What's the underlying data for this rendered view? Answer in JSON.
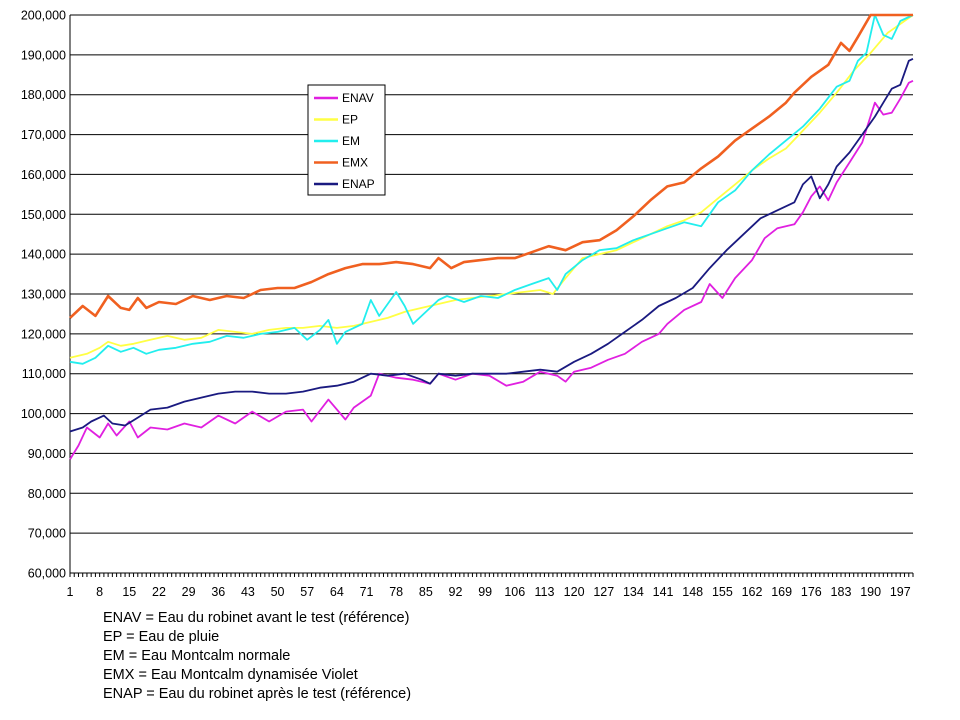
{
  "chart_data": {
    "type": "line",
    "title": "",
    "xlabel": "",
    "ylabel": "",
    "ylim": [
      60000,
      200000
    ],
    "yticks": [
      "60,000",
      "70,000",
      "80,000",
      "90,000",
      "100,000",
      "110,000",
      "120,000",
      "130,000",
      "140,000",
      "150,000",
      "160,000",
      "170,000",
      "180,000",
      "190,000",
      "200,000"
    ],
    "xlim": [
      1,
      200
    ],
    "xticks": [
      "1",
      "8",
      "15",
      "22",
      "29",
      "36",
      "43",
      "50",
      "57",
      "64",
      "71",
      "78",
      "85",
      "92",
      "99",
      "106",
      "113",
      "120",
      "127",
      "134",
      "141",
      "148",
      "155",
      "162",
      "169",
      "176",
      "183",
      "190",
      "197"
    ],
    "grid": "horizontal",
    "legend_position": "inside-top-left",
    "series": [
      {
        "name": "ENAV",
        "color": "#e020e0",
        "points": [
          [
            1,
            88500
          ],
          [
            3,
            92000
          ],
          [
            5,
            96500
          ],
          [
            8,
            94000
          ],
          [
            10,
            97500
          ],
          [
            12,
            94500
          ],
          [
            15,
            98000
          ],
          [
            17,
            94000
          ],
          [
            20,
            96500
          ],
          [
            24,
            96000
          ],
          [
            28,
            97500
          ],
          [
            32,
            96500
          ],
          [
            36,
            99500
          ],
          [
            40,
            97500
          ],
          [
            44,
            100500
          ],
          [
            48,
            98000
          ],
          [
            52,
            100500
          ],
          [
            56,
            101000
          ],
          [
            58,
            98000
          ],
          [
            62,
            103500
          ],
          [
            66,
            98500
          ],
          [
            68,
            101500
          ],
          [
            72,
            104500
          ],
          [
            74,
            110000
          ],
          [
            78,
            109000
          ],
          [
            82,
            108500
          ],
          [
            86,
            107500
          ],
          [
            88,
            110000
          ],
          [
            92,
            108500
          ],
          [
            96,
            110000
          ],
          [
            100,
            109500
          ],
          [
            104,
            107000
          ],
          [
            108,
            108000
          ],
          [
            112,
            110500
          ],
          [
            116,
            109500
          ],
          [
            118,
            108000
          ],
          [
            120,
            110500
          ],
          [
            124,
            111500
          ],
          [
            128,
            113500
          ],
          [
            132,
            115000
          ],
          [
            136,
            118000
          ],
          [
            140,
            120000
          ],
          [
            142,
            122500
          ],
          [
            146,
            126000
          ],
          [
            150,
            128000
          ],
          [
            152,
            132500
          ],
          [
            155,
            129000
          ],
          [
            158,
            134000
          ],
          [
            162,
            138500
          ],
          [
            165,
            144000
          ],
          [
            168,
            146500
          ],
          [
            172,
            147500
          ],
          [
            174,
            150500
          ],
          [
            176,
            154500
          ],
          [
            178,
            157000
          ],
          [
            180,
            153500
          ],
          [
            182,
            158000
          ],
          [
            185,
            163000
          ],
          [
            188,
            168000
          ],
          [
            191,
            178000
          ],
          [
            193,
            175000
          ],
          [
            195,
            175500
          ],
          [
            197,
            179000
          ],
          [
            199,
            183000
          ],
          [
            200,
            183500
          ]
        ]
      },
      {
        "name": "EP",
        "color": "#ffff44",
        "points": [
          [
            1,
            114000
          ],
          [
            5,
            115000
          ],
          [
            8,
            116500
          ],
          [
            10,
            118000
          ],
          [
            13,
            117000
          ],
          [
            16,
            117500
          ],
          [
            20,
            118500
          ],
          [
            24,
            119500
          ],
          [
            28,
            118500
          ],
          [
            32,
            119000
          ],
          [
            36,
            121000
          ],
          [
            40,
            120500
          ],
          [
            44,
            120000
          ],
          [
            48,
            121000
          ],
          [
            52,
            121500
          ],
          [
            56,
            121500
          ],
          [
            60,
            122000
          ],
          [
            64,
            121500
          ],
          [
            68,
            122000
          ],
          [
            72,
            123000
          ],
          [
            76,
            124000
          ],
          [
            80,
            125500
          ],
          [
            84,
            126500
          ],
          [
            88,
            127500
          ],
          [
            92,
            128500
          ],
          [
            96,
            129000
          ],
          [
            100,
            129500
          ],
          [
            104,
            130000
          ],
          [
            108,
            130500
          ],
          [
            112,
            131000
          ],
          [
            115,
            130000
          ],
          [
            118,
            134000
          ],
          [
            122,
            139000
          ],
          [
            126,
            140000
          ],
          [
            130,
            141000
          ],
          [
            134,
            143000
          ],
          [
            138,
            145000
          ],
          [
            142,
            147000
          ],
          [
            146,
            148500
          ],
          [
            150,
            150500
          ],
          [
            154,
            154000
          ],
          [
            158,
            157500
          ],
          [
            162,
            161000
          ],
          [
            166,
            164000
          ],
          [
            170,
            166500
          ],
          [
            174,
            171000
          ],
          [
            178,
            175500
          ],
          [
            182,
            180500
          ],
          [
            186,
            186000
          ],
          [
            190,
            190500
          ],
          [
            194,
            195500
          ],
          [
            198,
            198500
          ],
          [
            200,
            200000
          ]
        ]
      },
      {
        "name": "EM",
        "color": "#22eeee",
        "points": [
          [
            1,
            113000
          ],
          [
            4,
            112500
          ],
          [
            7,
            114000
          ],
          [
            10,
            117000
          ],
          [
            13,
            115500
          ],
          [
            16,
            116500
          ],
          [
            19,
            115000
          ],
          [
            22,
            116000
          ],
          [
            26,
            116500
          ],
          [
            30,
            117500
          ],
          [
            34,
            118000
          ],
          [
            38,
            119500
          ],
          [
            42,
            119000
          ],
          [
            46,
            120000
          ],
          [
            50,
            120500
          ],
          [
            54,
            121500
          ],
          [
            57,
            118500
          ],
          [
            60,
            121000
          ],
          [
            62,
            123500
          ],
          [
            64,
            117500
          ],
          [
            66,
            120500
          ],
          [
            70,
            122500
          ],
          [
            72,
            128500
          ],
          [
            74,
            124500
          ],
          [
            78,
            130500
          ],
          [
            80,
            127000
          ],
          [
            82,
            122500
          ],
          [
            84,
            124500
          ],
          [
            88,
            128500
          ],
          [
            90,
            129500
          ],
          [
            94,
            128000
          ],
          [
            98,
            129500
          ],
          [
            102,
            129000
          ],
          [
            106,
            131000
          ],
          [
            110,
            132500
          ],
          [
            114,
            134000
          ],
          [
            116,
            131000
          ],
          [
            118,
            135000
          ],
          [
            122,
            138500
          ],
          [
            126,
            141000
          ],
          [
            130,
            141500
          ],
          [
            134,
            143500
          ],
          [
            138,
            145000
          ],
          [
            142,
            146500
          ],
          [
            146,
            148000
          ],
          [
            150,
            147000
          ],
          [
            154,
            153000
          ],
          [
            158,
            156000
          ],
          [
            162,
            161000
          ],
          [
            166,
            165000
          ],
          [
            170,
            168500
          ],
          [
            174,
            172000
          ],
          [
            178,
            176500
          ],
          [
            182,
            182000
          ],
          [
            185,
            183500
          ],
          [
            187,
            188500
          ],
          [
            189,
            190500
          ],
          [
            191,
            200000
          ],
          [
            193,
            195000
          ],
          [
            195,
            194000
          ],
          [
            197,
            198500
          ],
          [
            199,
            199500
          ],
          [
            200,
            200000
          ]
        ]
      },
      {
        "name": "EMX",
        "color": "#f06020",
        "points": [
          [
            1,
            124000
          ],
          [
            4,
            127000
          ],
          [
            7,
            124500
          ],
          [
            10,
            129500
          ],
          [
            13,
            126500
          ],
          [
            15,
            126000
          ],
          [
            17,
            129000
          ],
          [
            19,
            126500
          ],
          [
            22,
            128000
          ],
          [
            26,
            127500
          ],
          [
            30,
            129500
          ],
          [
            34,
            128500
          ],
          [
            38,
            129500
          ],
          [
            42,
            129000
          ],
          [
            46,
            131000
          ],
          [
            50,
            131500
          ],
          [
            54,
            131500
          ],
          [
            58,
            133000
          ],
          [
            62,
            135000
          ],
          [
            66,
            136500
          ],
          [
            70,
            137500
          ],
          [
            74,
            137500
          ],
          [
            78,
            138000
          ],
          [
            82,
            137500
          ],
          [
            86,
            136500
          ],
          [
            88,
            139000
          ],
          [
            91,
            136500
          ],
          [
            94,
            138000
          ],
          [
            98,
            138500
          ],
          [
            102,
            139000
          ],
          [
            106,
            139000
          ],
          [
            110,
            140500
          ],
          [
            114,
            142000
          ],
          [
            118,
            141000
          ],
          [
            122,
            143000
          ],
          [
            126,
            143500
          ],
          [
            130,
            146000
          ],
          [
            134,
            149500
          ],
          [
            138,
            153500
          ],
          [
            142,
            157000
          ],
          [
            146,
            158000
          ],
          [
            150,
            161500
          ],
          [
            154,
            164500
          ],
          [
            158,
            168500
          ],
          [
            162,
            171500
          ],
          [
            166,
            174500
          ],
          [
            170,
            178000
          ],
          [
            172,
            180500
          ],
          [
            176,
            184500
          ],
          [
            180,
            187500
          ],
          [
            183,
            193000
          ],
          [
            185,
            191000
          ],
          [
            187,
            194500
          ],
          [
            190,
            200000
          ],
          [
            200,
            200000
          ]
        ]
      },
      {
        "name": "ENAP",
        "color": "#1a1a80",
        "points": [
          [
            1,
            95500
          ],
          [
            4,
            96500
          ],
          [
            6,
            98000
          ],
          [
            9,
            99500
          ],
          [
            11,
            97500
          ],
          [
            14,
            97000
          ],
          [
            17,
            99000
          ],
          [
            20,
            101000
          ],
          [
            24,
            101500
          ],
          [
            28,
            103000
          ],
          [
            32,
            104000
          ],
          [
            36,
            105000
          ],
          [
            40,
            105500
          ],
          [
            44,
            105500
          ],
          [
            48,
            105000
          ],
          [
            52,
            105000
          ],
          [
            56,
            105500
          ],
          [
            60,
            106500
          ],
          [
            64,
            107000
          ],
          [
            68,
            108000
          ],
          [
            72,
            110000
          ],
          [
            76,
            109500
          ],
          [
            80,
            110000
          ],
          [
            84,
            108500
          ],
          [
            86,
            107500
          ],
          [
            88,
            110000
          ],
          [
            92,
            109500
          ],
          [
            96,
            110000
          ],
          [
            100,
            110000
          ],
          [
            104,
            110000
          ],
          [
            108,
            110500
          ],
          [
            112,
            111000
          ],
          [
            116,
            110500
          ],
          [
            120,
            113000
          ],
          [
            124,
            115000
          ],
          [
            128,
            117500
          ],
          [
            132,
            120500
          ],
          [
            136,
            123500
          ],
          [
            140,
            127000
          ],
          [
            144,
            129000
          ],
          [
            148,
            131500
          ],
          [
            152,
            136500
          ],
          [
            156,
            141000
          ],
          [
            160,
            145000
          ],
          [
            164,
            149000
          ],
          [
            168,
            151000
          ],
          [
            172,
            153000
          ],
          [
            174,
            157500
          ],
          [
            176,
            159500
          ],
          [
            178,
            154000
          ],
          [
            180,
            157500
          ],
          [
            182,
            162000
          ],
          [
            185,
            165500
          ],
          [
            188,
            170000
          ],
          [
            191,
            174500
          ],
          [
            193,
            178000
          ],
          [
            195,
            181500
          ],
          [
            197,
            182500
          ],
          [
            199,
            188500
          ],
          [
            200,
            189000
          ]
        ]
      }
    ],
    "notes": [
      "ENAV = Eau du robinet avant le test (référence)",
      "EP = Eau de pluie",
      "EM = Eau Montcalm normale",
      "EMX = Eau Montcalm dynamisée Violet",
      "ENAP = Eau du robinet après le test (référence)"
    ]
  }
}
